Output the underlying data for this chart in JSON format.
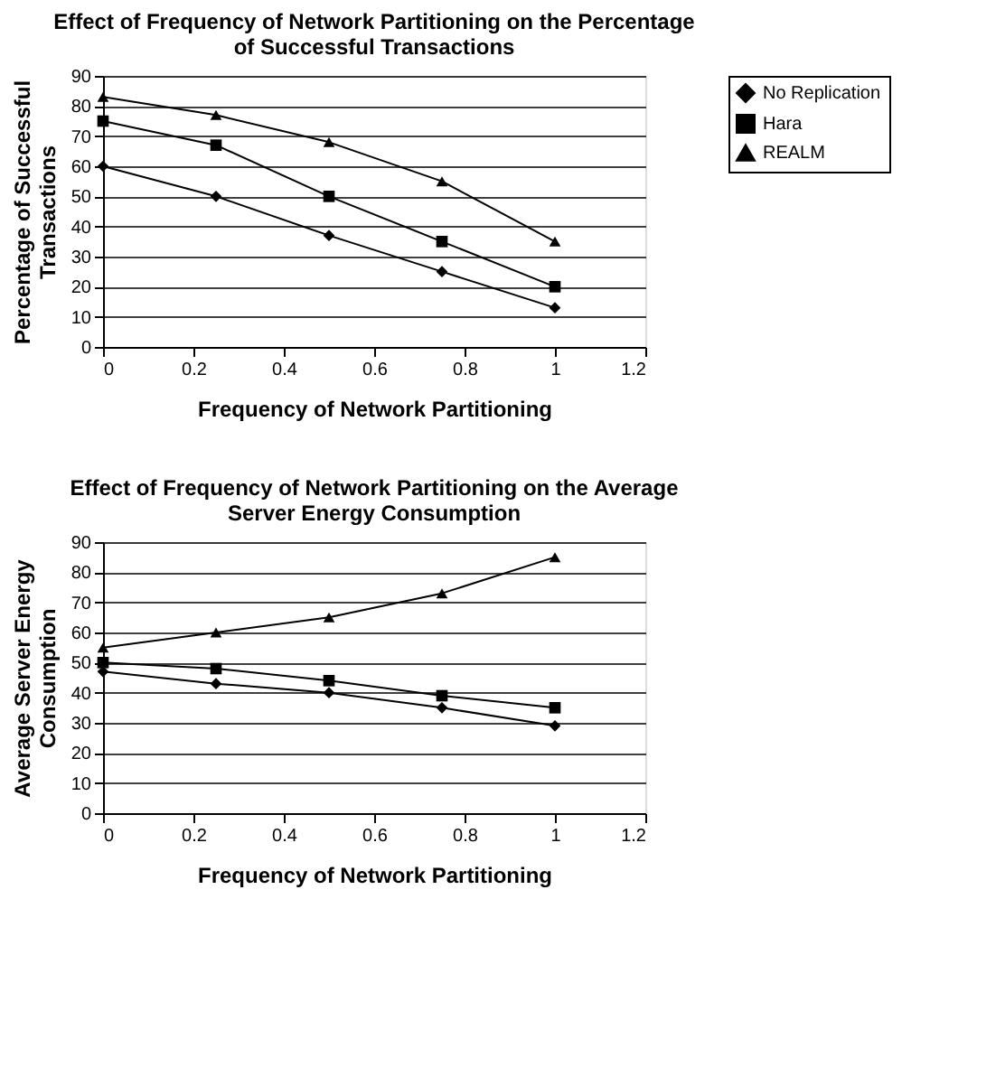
{
  "chart_data": [
    {
      "type": "line",
      "title": "Effect of Frequency of Network Partitioning on the Percentage of Successful Transactions",
      "xlabel": "Frequency of Network Partitioning",
      "ylabel": "Percentage of Successful Transactions",
      "x": [
        0,
        0.25,
        0.5,
        0.75,
        1
      ],
      "xlim": [
        0,
        1.2
      ],
      "xticks": [
        0,
        0.2,
        0.4,
        0.6,
        0.8,
        1,
        1.2
      ],
      "ylim": [
        0,
        90
      ],
      "yticks": [
        0,
        10,
        20,
        30,
        40,
        50,
        60,
        70,
        80,
        90
      ],
      "grid": "y",
      "legend": "right",
      "line_style": "solid",
      "series": [
        {
          "name": "No Replication",
          "color": "#000000",
          "marker": "diamond",
          "values": [
            60,
            50,
            37,
            25,
            13
          ]
        },
        {
          "name": "Hara",
          "color": "#000000",
          "marker": "square",
          "values": [
            75,
            67,
            50,
            35,
            20
          ]
        },
        {
          "name": "REALM",
          "color": "#000000",
          "marker": "triangle",
          "values": [
            83,
            77,
            68,
            55,
            35
          ]
        }
      ]
    },
    {
      "type": "line",
      "title": "Effect of Frequency of Network Partitioning on the Average Server Energy Consumption",
      "xlabel": "Frequency of Network Partitioning",
      "ylabel": "Average Server Energy Consumption",
      "x": [
        0,
        0.25,
        0.5,
        0.75,
        1
      ],
      "xlim": [
        0,
        1.2
      ],
      "xticks": [
        0,
        0.2,
        0.4,
        0.6,
        0.8,
        1,
        1.2
      ],
      "ylim": [
        0,
        90
      ],
      "yticks": [
        0,
        10,
        20,
        30,
        40,
        50,
        60,
        70,
        80,
        90
      ],
      "grid": "y",
      "legend": "right",
      "line_style": "solid",
      "series": [
        {
          "name": "No Replication",
          "color": "#000000",
          "marker": "diamond",
          "values": [
            47,
            43,
            40,
            35,
            29
          ]
        },
        {
          "name": "Hara",
          "color": "#000000",
          "marker": "square",
          "values": [
            50,
            48,
            44,
            39,
            35
          ]
        },
        {
          "name": "REALM",
          "color": "#000000",
          "marker": "triangle",
          "values": [
            55,
            60,
            65,
            73,
            85
          ]
        }
      ]
    }
  ]
}
